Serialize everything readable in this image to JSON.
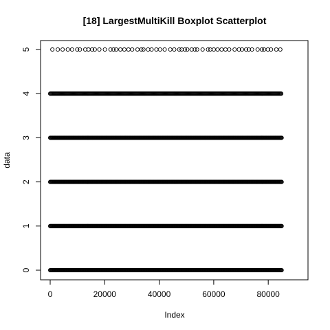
{
  "chart_data": {
    "type": "scatter",
    "title": "[18] LargestMultiKill Boxplot Scatterplot",
    "xlabel": "Index",
    "ylabel": "data",
    "xlim": [
      0,
      85000
    ],
    "ylim": [
      0,
      5
    ],
    "x_ticks": [
      0,
      20000,
      40000,
      60000,
      80000
    ],
    "x_tick_labels": [
      "0",
      "20000",
      "40000",
      "60000",
      "80000"
    ],
    "y_ticks": [
      0,
      1,
      2,
      3,
      4,
      5
    ],
    "y_tick_labels": [
      "0",
      "1",
      "2",
      "3",
      "4",
      "5"
    ],
    "grid": false,
    "marker": "open-circle",
    "marker_color": "#000000",
    "series": [
      {
        "levels": [
          {
            "y": 0,
            "x_range": [
              0,
              85000
            ],
            "density": "dense"
          },
          {
            "y": 1,
            "x_range": [
              0,
              85000
            ],
            "density": "dense"
          },
          {
            "y": 2,
            "x_range": [
              0,
              85000
            ],
            "density": "dense"
          },
          {
            "y": 3,
            "x_range": [
              0,
              85000
            ],
            "density": "dense"
          },
          {
            "y": 4,
            "x_range": [
              0,
              85000
            ],
            "density": "medium"
          },
          {
            "y": 5,
            "x_range": [
              0,
              85000
            ],
            "density": "sparse"
          }
        ]
      }
    ]
  }
}
